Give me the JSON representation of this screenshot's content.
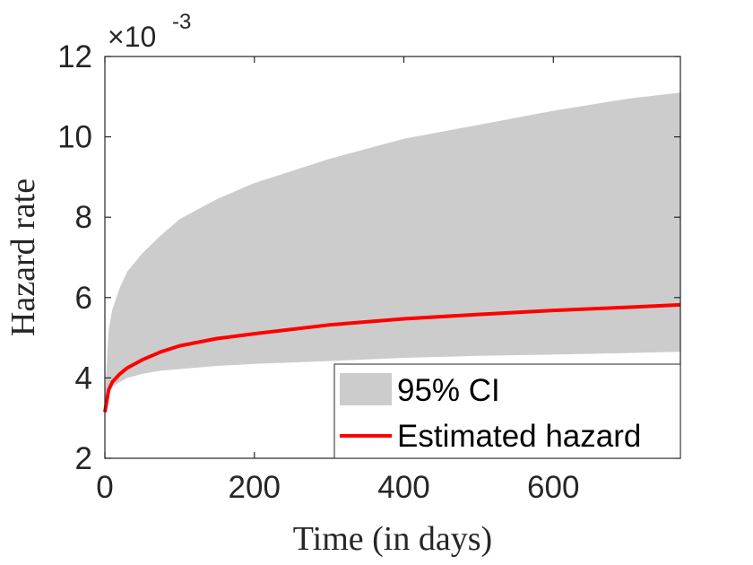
{
  "chart_data": {
    "type": "line",
    "title": "",
    "xlabel": "Time (in days)",
    "ylabel": "Hazard rate",
    "xlim": [
      0,
      770
    ],
    "ylim": [
      2,
      12
    ],
    "xticks": [
      0,
      200,
      400,
      600
    ],
    "yticks": [
      2,
      4,
      6,
      8,
      10,
      12
    ],
    "x_tick_labels": [
      "0",
      "200",
      "400",
      "600"
    ],
    "y_tick_labels": [
      "2",
      "4",
      "6",
      "8",
      "10",
      "12"
    ],
    "y_scale_multiplier": "×10",
    "y_scale_exponent": "-3",
    "x": [
      0,
      5,
      10,
      20,
      30,
      50,
      75,
      100,
      150,
      200,
      300,
      400,
      500,
      600,
      700,
      770
    ],
    "series": [
      {
        "name": "Estimated hazard",
        "color": "#ff0000",
        "values": [
          3.15,
          3.7,
          3.9,
          4.1,
          4.25,
          4.45,
          4.65,
          4.8,
          4.98,
          5.1,
          5.32,
          5.47,
          5.58,
          5.68,
          5.76,
          5.82
        ]
      }
    ],
    "band": {
      "name": "95% CI",
      "color": "#cccccc",
      "lower": [
        3.2,
        3.6,
        3.78,
        3.9,
        4.0,
        4.1,
        4.18,
        4.22,
        4.3,
        4.35,
        4.42,
        4.5,
        4.55,
        4.58,
        4.62,
        4.65
      ],
      "upper": [
        3.5,
        5.2,
        5.7,
        6.25,
        6.65,
        7.1,
        7.55,
        7.95,
        8.45,
        8.85,
        9.45,
        9.95,
        10.3,
        10.65,
        10.95,
        11.1
      ]
    },
    "legend": {
      "position": "bottom-right",
      "entries": [
        "95% CI",
        "Estimated hazard"
      ]
    },
    "grid": false
  }
}
